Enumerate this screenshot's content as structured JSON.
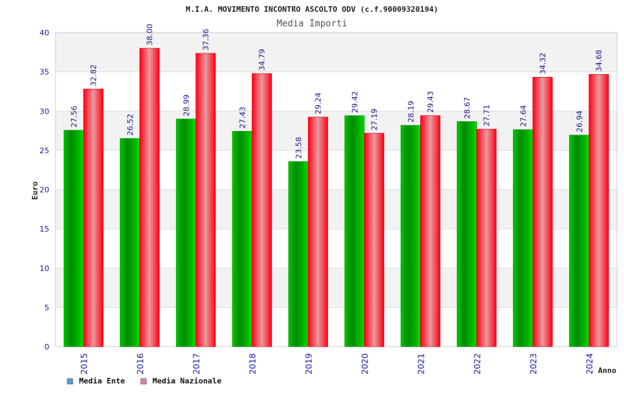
{
  "chart_data": {
    "type": "bar",
    "title": "M.I.A. MOVIMENTO INCONTRO ASCOLTO ODV (c.f.90009320194)",
    "subtitle": "Media Importi",
    "xlabel": "Anno",
    "ylabel": "Euro",
    "categories": [
      "2015",
      "2016",
      "2017",
      "2018",
      "2019",
      "2020",
      "2021",
      "2022",
      "2023",
      "2024"
    ],
    "series": [
      {
        "name": "Media Ente",
        "color": "#00a000",
        "values": [
          27.56,
          26.52,
          28.99,
          27.43,
          23.58,
          29.42,
          28.19,
          28.67,
          27.64,
          26.94
        ],
        "labels": [
          "27.56",
          "26.52",
          "28.99",
          "27.43",
          "23.58",
          "29.42",
          "28.19",
          "28.67",
          "27.64",
          "26.94"
        ]
      },
      {
        "name": "Media Nazionale",
        "color": "#ff1a2a",
        "values": [
          32.82,
          38.0,
          37.36,
          34.79,
          29.24,
          27.19,
          29.43,
          27.71,
          34.32,
          34.68
        ],
        "labels": [
          "32.82",
          "38.00",
          "37.36",
          "34.79",
          "29.24",
          "27.19",
          "29.43",
          "27.71",
          "34.32",
          "34.68"
        ]
      }
    ],
    "ylim": [
      0,
      40
    ],
    "yticks": [
      "0",
      "5",
      "10",
      "15",
      "20",
      "25",
      "30",
      "35",
      "40"
    ],
    "grid": true,
    "legend_position": "bottom-left",
    "legend_swatch_colors": [
      "#5b9bd5",
      "#e07fb0"
    ]
  }
}
